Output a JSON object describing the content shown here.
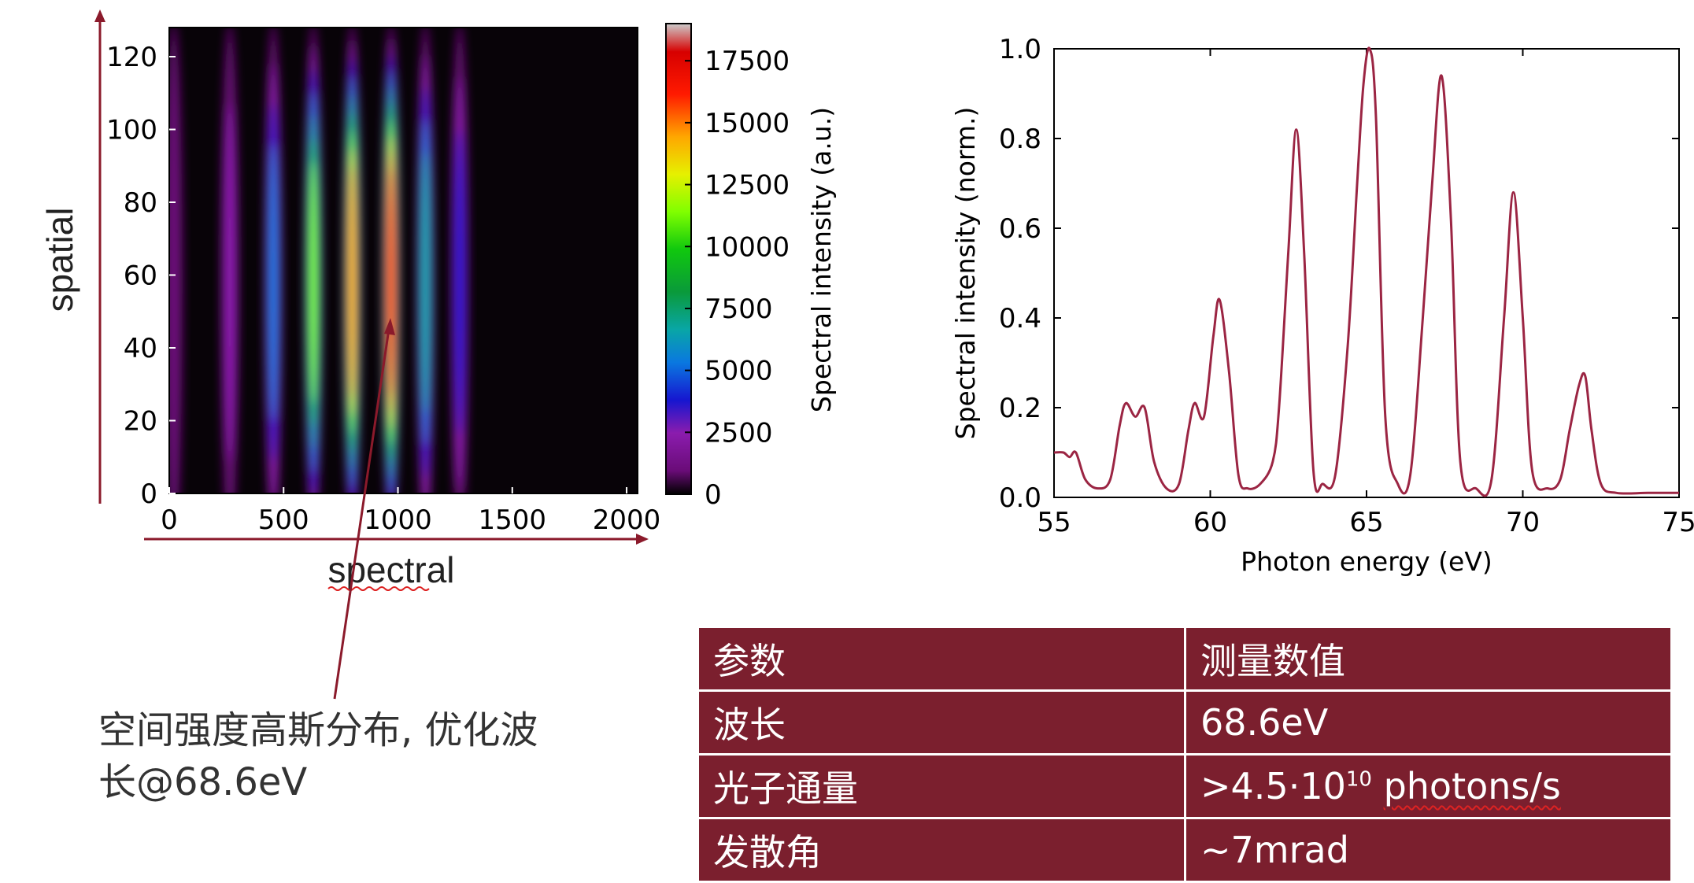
{
  "heatmap": {
    "spatial_label": "spatial",
    "spectral_label": "spectral",
    "colorbar_label": "Spectral intensity (a.u.)",
    "x_ticks": [
      "0",
      "500",
      "1000",
      "1500",
      "2000"
    ],
    "y_ticks": [
      "0",
      "20",
      "40",
      "60",
      "80",
      "100",
      "120"
    ],
    "colorbar_ticks": [
      "0",
      "2500",
      "5000",
      "7500",
      "10000",
      "12500",
      "15000",
      "17500"
    ]
  },
  "annotation": {
    "line1": "空间强度高斯分布, 优化波",
    "line2": "长@68.6eV"
  },
  "params_table": {
    "header": [
      "参数",
      "测量数值"
    ],
    "rows": [
      {
        "name": "波长",
        "value": "68.6eV"
      },
      {
        "name": "光子通量",
        "value_prefix": ">4.5·10",
        "value_sup": "10",
        "value_suffix": "photons/s"
      },
      {
        "name": "发散角",
        "value": "~7mrad"
      }
    ]
  },
  "colors": {
    "table_bg": "#7b1f2e",
    "spectrum_line": "#9b2543",
    "arrow": "#8b1a2b"
  },
  "chart_data": [
    {
      "type": "heatmap",
      "xlabel": "",
      "ylabel": "",
      "xlim": [
        0,
        2048
      ],
      "ylim": [
        0,
        128
      ],
      "colorbar_label": "Spectral intensity (a.u.)",
      "clim": [
        0,
        19000
      ],
      "colormap": "nipy_spectral",
      "stripes": [
        {
          "x": 20,
          "peak": 1800
        },
        {
          "x": 265,
          "peak": 3000
        },
        {
          "x": 455,
          "peak": 7000
        },
        {
          "x": 630,
          "peak": 11500
        },
        {
          "x": 800,
          "peak": 16500
        },
        {
          "x": 970,
          "peak": 17500
        },
        {
          "x": 1120,
          "peak": 9000
        },
        {
          "x": 1270,
          "peak": 3500
        }
      ]
    },
    {
      "type": "line",
      "title": "",
      "xlabel": "Photon energy (eV)",
      "ylabel": "Spectral intensity (norm.)",
      "xlim": [
        55,
        75
      ],
      "ylim": [
        0,
        1.0
      ],
      "x_ticks": [
        55,
        60,
        65,
        70,
        75
      ],
      "y_ticks": [
        "0.0",
        "0.2",
        "0.4",
        "0.6",
        "0.8",
        "1.0"
      ],
      "grid": false,
      "x": [
        55.0,
        55.3,
        55.5,
        55.7,
        56.0,
        56.4,
        56.8,
        57.1,
        57.3,
        57.6,
        57.9,
        58.2,
        58.6,
        59.0,
        59.3,
        59.5,
        59.8,
        60.1,
        60.3,
        60.6,
        60.9,
        61.2,
        61.6,
        62.0,
        62.2,
        62.5,
        62.75,
        63.0,
        63.3,
        63.6,
        64.0,
        64.4,
        64.7,
        64.9,
        65.1,
        65.3,
        65.6,
        66.0,
        66.4,
        66.8,
        67.1,
        67.4,
        67.7,
        68.0,
        68.5,
        69.0,
        69.4,
        69.7,
        70.0,
        70.3,
        70.8,
        71.2,
        71.5,
        71.8,
        72.0,
        72.2,
        72.5,
        73.0,
        74.0,
        75.0
      ],
      "y": [
        0.1,
        0.1,
        0.09,
        0.1,
        0.04,
        0.02,
        0.04,
        0.16,
        0.21,
        0.18,
        0.2,
        0.08,
        0.02,
        0.03,
        0.15,
        0.21,
        0.18,
        0.36,
        0.44,
        0.28,
        0.05,
        0.02,
        0.03,
        0.08,
        0.2,
        0.55,
        0.82,
        0.55,
        0.06,
        0.03,
        0.05,
        0.34,
        0.7,
        0.92,
        1.0,
        0.85,
        0.18,
        0.03,
        0.05,
        0.4,
        0.7,
        0.94,
        0.62,
        0.08,
        0.02,
        0.04,
        0.4,
        0.68,
        0.4,
        0.06,
        0.02,
        0.04,
        0.15,
        0.25,
        0.27,
        0.15,
        0.03,
        0.01,
        0.01,
        0.01
      ]
    }
  ]
}
